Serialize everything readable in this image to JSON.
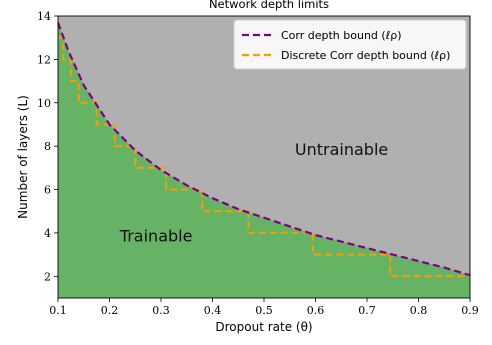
{
  "chart_data": {
    "type": "area",
    "title": "Network depth limits",
    "xlabel": "Dropout rate (θ)",
    "ylabel": "Number of layers (L)",
    "xlim": [
      0.1,
      0.9
    ],
    "ylim": [
      1,
      14
    ],
    "xticks": [
      0.1,
      0.2,
      0.3,
      0.4,
      0.5,
      0.6,
      0.7,
      0.8,
      0.9
    ],
    "yticks": [
      2,
      4,
      6,
      8,
      10,
      12,
      14
    ],
    "grid": false,
    "legend_position": "top-right",
    "regions": [
      {
        "label": "Untrainable",
        "color": "#b0b0b0",
        "label_at": {
          "x": 0.56,
          "y": 7.6
        }
      },
      {
        "label": "Trainable",
        "color": "#66b366",
        "label_at": {
          "x": 0.22,
          "y": 3.6
        }
      }
    ],
    "series": [
      {
        "name": "Corr depth bound (ℓρ)",
        "style": "dashed",
        "color": "#800080",
        "x": [
          0.1,
          0.12,
          0.15,
          0.2,
          0.25,
          0.3,
          0.35,
          0.4,
          0.45,
          0.5,
          0.55,
          0.6,
          0.65,
          0.7,
          0.75,
          0.8,
          0.85,
          0.9
        ],
        "y": [
          13.7,
          12.4,
          10.8,
          9.0,
          7.8,
          6.9,
          6.2,
          5.6,
          5.1,
          4.7,
          4.3,
          3.9,
          3.6,
          3.3,
          3.0,
          2.7,
          2.4,
          2.05
        ]
      },
      {
        "name": "Discrete Corr depth bound (ℓρ)",
        "style": "dashed-step",
        "color": "#f5a000",
        "x": [
          0.1,
          0.11,
          0.125,
          0.14,
          0.155,
          0.175,
          0.21,
          0.25,
          0.31,
          0.38,
          0.47,
          0.595,
          0.745,
          0.9
        ],
        "y": [
          13,
          12,
          11,
          10,
          10,
          9,
          8,
          7,
          6,
          5,
          4,
          3,
          2,
          2
        ]
      }
    ]
  }
}
